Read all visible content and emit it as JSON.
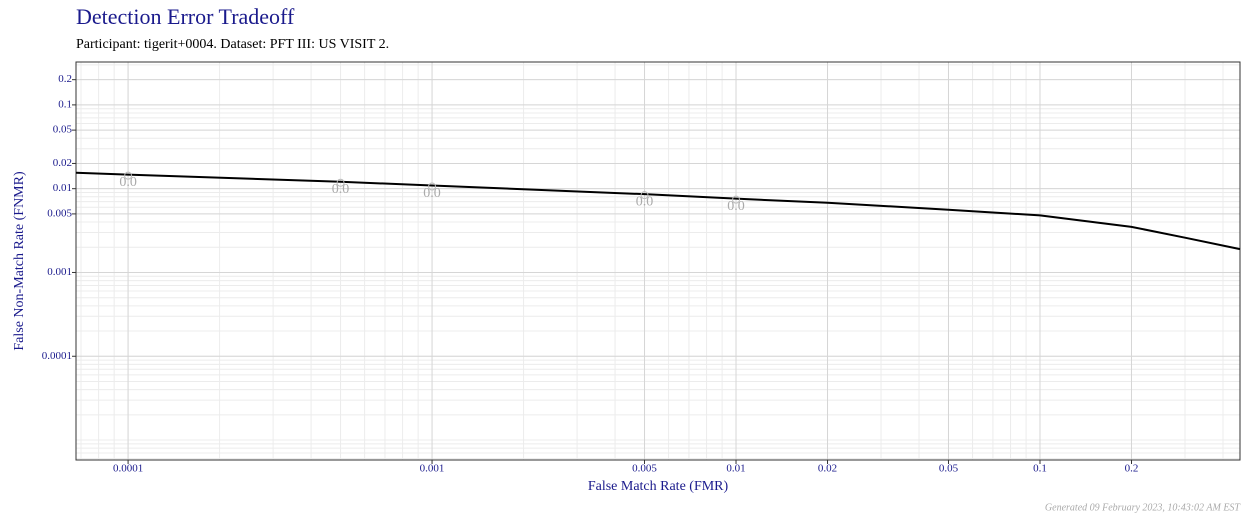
{
  "chart_data": {
    "type": "line",
    "title": "Detection Error Tradeoff",
    "subtitle": "Participant: tigerit+0004. Dataset: PFT III: US VISIT 2.",
    "x_label": "False Match Rate (FMR)",
    "y_label": "False Non-Match Rate (FNMR)",
    "x_scale": "log",
    "y_scale": "log",
    "grid": true,
    "xlim": [
      6.74e-05,
      0.455
    ],
    "ylim": [
      5.78e-06,
      0.325
    ],
    "xticks": [
      0.0001,
      0.001,
      0.005,
      0.01,
      0.02,
      0.05,
      0.1,
      0.2
    ],
    "yticks": [
      0.0001,
      0.001,
      0.005,
      0.01,
      0.02,
      0.05,
      0.1,
      0.2
    ],
    "series": [
      {
        "color": "#000000",
        "x": [
          6.74e-05,
          0.0001,
          0.0005,
          0.001,
          0.005,
          0.01,
          0.02,
          0.05,
          0.1,
          0.2,
          0.3,
          0.455
        ],
        "values": [
          0.0155,
          0.0147,
          0.0121,
          0.0109,
          0.0086,
          0.0076,
          0.0068,
          0.0056,
          0.0048,
          0.0035,
          0.0026,
          0.0019
        ]
      }
    ],
    "annotations": [
      {
        "x": 0.0001,
        "y": 0.0147,
        "label": "0.0"
      },
      {
        "x": 0.0005,
        "y": 0.0121,
        "label": "0.0"
      },
      {
        "x": 0.001,
        "y": 0.0109,
        "label": "0.0"
      },
      {
        "x": 0.005,
        "y": 0.0086,
        "label": "0.0"
      },
      {
        "x": 0.01,
        "y": 0.0076,
        "label": "0.0"
      }
    ],
    "footnote": "Generated 09 February 2023, 10:43:02 AM EST"
  }
}
